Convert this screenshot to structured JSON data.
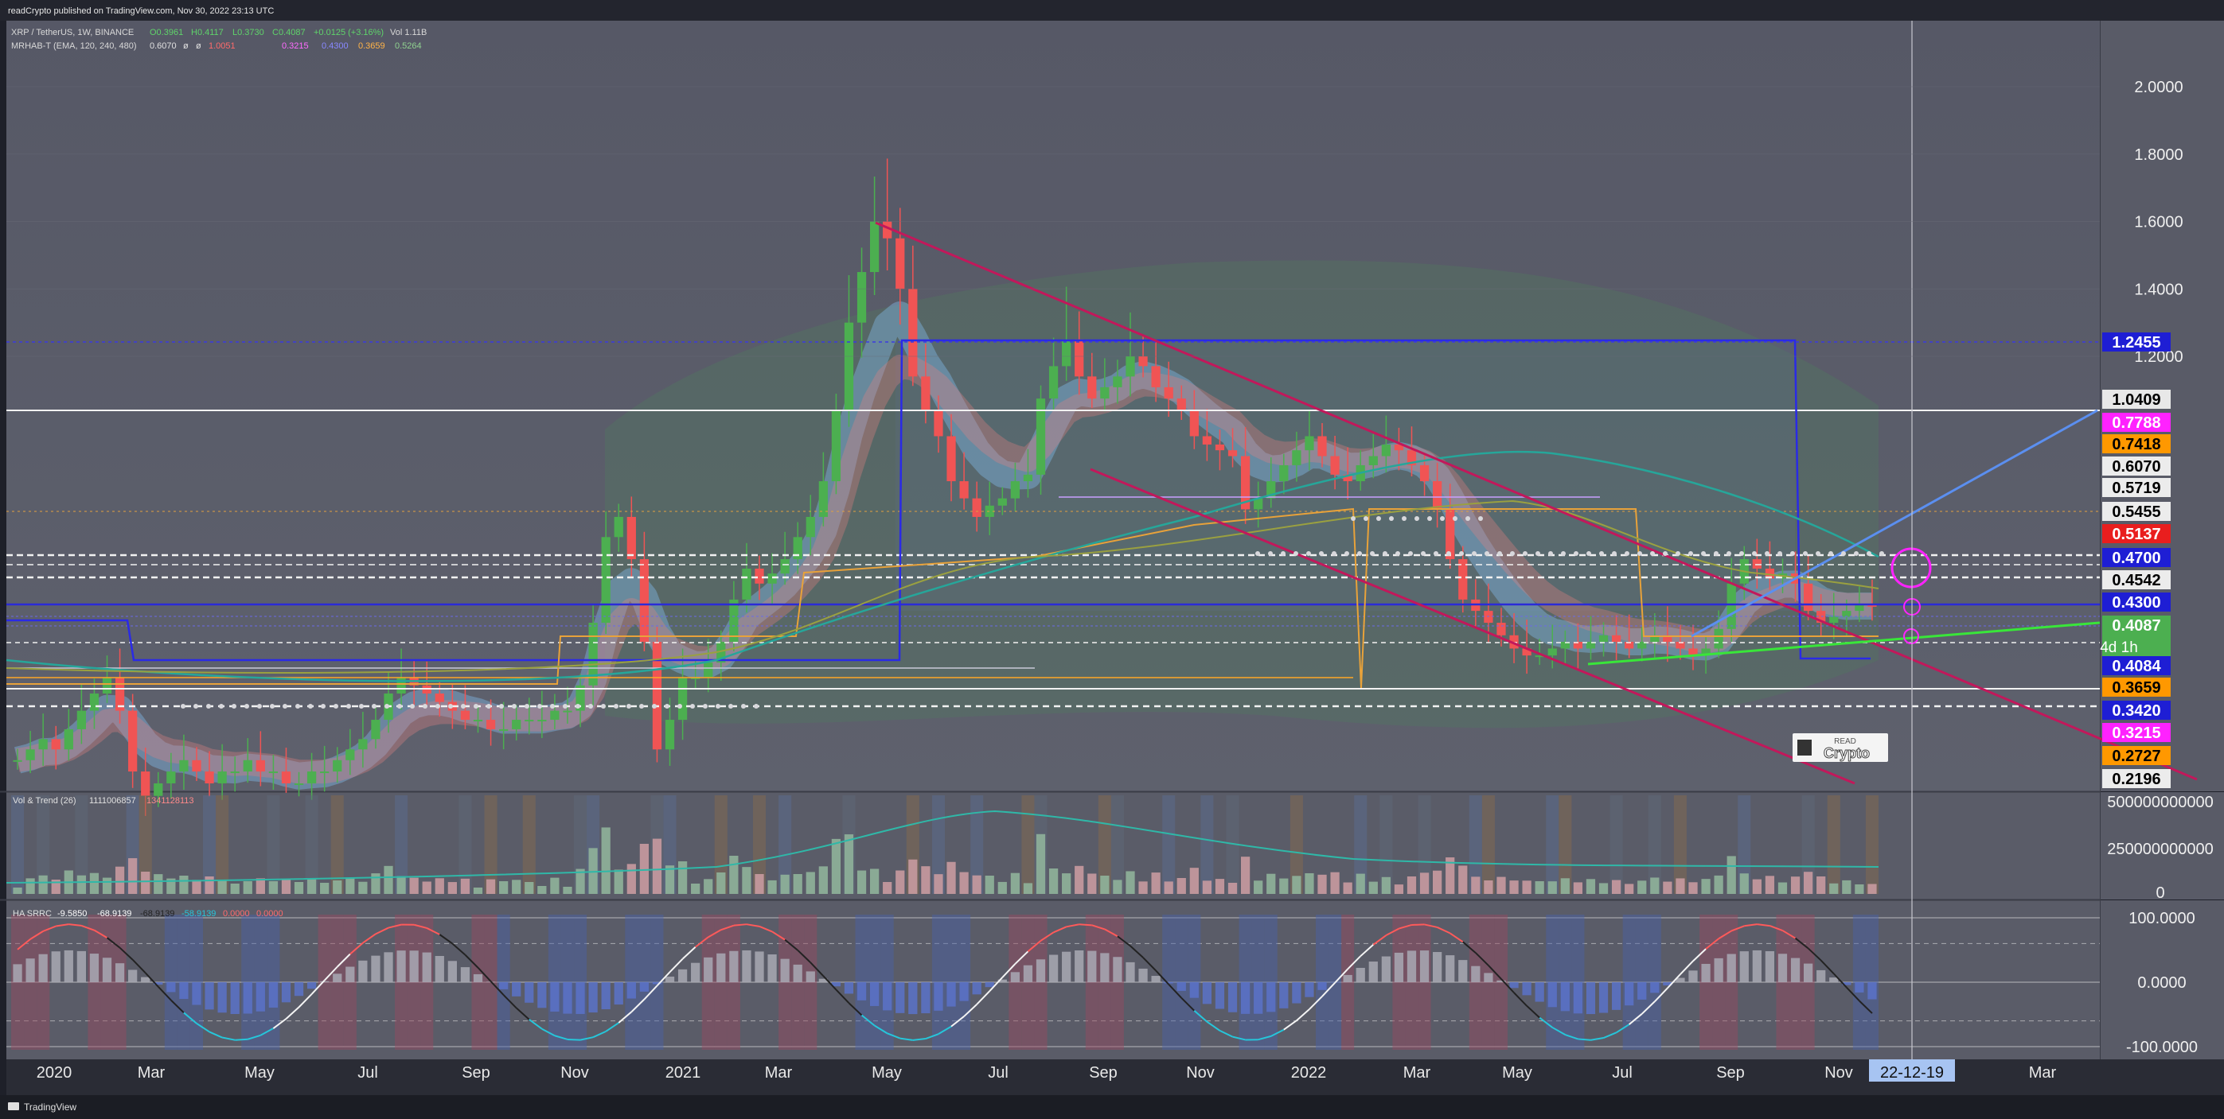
{
  "header": {
    "published": "readCrypto published on TradingView.com, Nov 30, 2022 23:13 UTC",
    "symbol_line": "XRP / TetherUS, 1W, BINANCE",
    "ohlc": {
      "o": "O0.3961",
      "h": "H0.4117",
      "l": "L0.3730",
      "c": "C0.4087",
      "chg": "+0.0125 (+3.16%)",
      "vol": "Vol 1.11B"
    },
    "indicator_line": "MRHAB-T (EMA, 120, 240, 480)",
    "indicator_values": [
      "0.6070",
      "ø",
      "ø",
      "1.0051",
      "0.3215",
      "0.4300",
      "0.3659",
      "0.5264"
    ]
  },
  "vol_panel": {
    "label": "Vol & Trend (26)",
    "value": "1111006857",
    "value2": "1341128113"
  },
  "osc_panel": {
    "label": "HA SRRC",
    "values": [
      "-9.5850",
      "-68.9139",
      "-68.9139",
      "-58.9139",
      "0.0000",
      "0.0000"
    ]
  },
  "footer": {
    "brand": "TradingView"
  },
  "watermark": {
    "top": "READ",
    "bottom": "Crypto"
  },
  "colors": {
    "background": "#5d5f6b",
    "up": "#4caf50",
    "down": "#f05454",
    "channel": "#c2185b",
    "blue_level": "#1f1fd6",
    "support": "#39e639",
    "orange": "#e88b1a",
    "teal": "#26a69a"
  },
  "chart_data": [
    {
      "type": "line",
      "title": "",
      "series_name": "XRP / TetherUS",
      "x_ticks": [
        "2020",
        "Mar",
        "May",
        "Jul",
        "Sep",
        "Nov",
        "2021",
        "Mar",
        "May",
        "Jul",
        "Sep",
        "Nov",
        "2022",
        "Mar",
        "May",
        "Jul",
        "Sep",
        "Nov",
        "22-12-19",
        "Mar"
      ],
      "crosshair_date": "22-12-19",
      "y_axis": {
        "ticks": [
          "2.0000",
          "1.8000",
          "1.6000",
          "1.4000",
          "1.2000"
        ],
        "range": [
          0.19,
          2.05
        ]
      },
      "price_labels": [
        {
          "value": "1.2455",
          "color": "#1e1ed4",
          "text_color": "#ffffff"
        },
        {
          "value": "1.0409",
          "color": "#e8e8e8",
          "text_color": "#000000"
        },
        {
          "value": "0.7788",
          "color": "#ff22ff",
          "text_color": "#ffffff"
        },
        {
          "value": "0.7418",
          "color": "#ff9800",
          "text_color": "#000000"
        },
        {
          "value": "0.6070",
          "color": "#ececec",
          "text_color": "#000000"
        },
        {
          "value": "0.5719",
          "color": "#ececec",
          "text_color": "#000000"
        },
        {
          "value": "0.5455",
          "color": "#ececec",
          "text_color": "#000000"
        },
        {
          "value": "0.5137",
          "color": "#e91e1e",
          "text_color": "#ffffff"
        },
        {
          "value": "0.4700",
          "color": "#1e1ed4",
          "text_color": "#ffffff"
        },
        {
          "value": "0.4542",
          "color": "#ececec",
          "text_color": "#000000"
        },
        {
          "value": "0.4300",
          "color": "#1e1ed4",
          "text_color": "#ffffff"
        },
        {
          "value": "0.4087",
          "color": "#4caf50",
          "text_color": "#ffffff",
          "countdown": "4d 1h"
        },
        {
          "value": "0.4084",
          "color": "#1e1ed4",
          "text_color": "#ffffff"
        },
        {
          "value": "0.3659",
          "color": "#ff9800",
          "text_color": "#000000"
        },
        {
          "value": "0.3420",
          "color": "#1e1ed4",
          "text_color": "#ffffff"
        },
        {
          "value": "0.3215",
          "color": "#ff22ff",
          "text_color": "#ffffff"
        },
        {
          "value": "0.2727",
          "color": "#ff9800",
          "text_color": "#000000"
        },
        {
          "value": "0.2196",
          "color": "#ececec",
          "text_color": "#000000"
        }
      ],
      "close_path": [
        0.21,
        0.22,
        0.23,
        0.22,
        0.24,
        0.26,
        0.28,
        0.3,
        0.26,
        0.2,
        0.18,
        0.19,
        0.2,
        0.21,
        0.2,
        0.19,
        0.2,
        0.2,
        0.21,
        0.2,
        0.2,
        0.19,
        0.19,
        0.2,
        0.2,
        0.21,
        0.22,
        0.23,
        0.25,
        0.28,
        0.3,
        0.29,
        0.28,
        0.27,
        0.26,
        0.25,
        0.25,
        0.24,
        0.24,
        0.25,
        0.25,
        0.25,
        0.26,
        0.26,
        0.29,
        0.38,
        0.55,
        0.6,
        0.5,
        0.35,
        0.22,
        0.25,
        0.3,
        0.3,
        0.32,
        0.35,
        0.42,
        0.48,
        0.45,
        0.47,
        0.5,
        0.55,
        0.6,
        0.7,
        0.95,
        1.3,
        1.45,
        1.6,
        1.55,
        1.4,
        1.1,
        0.95,
        0.85,
        0.7,
        0.65,
        0.6,
        0.63,
        0.65,
        0.7,
        0.72,
        1.0,
        1.15,
        1.25,
        1.1,
        1.0,
        1.05,
        1.1,
        1.2,
        1.15,
        1.05,
        1.0,
        0.95,
        0.85,
        0.82,
        0.8,
        0.78,
        0.62,
        0.65,
        0.7,
        0.75,
        0.8,
        0.85,
        0.78,
        0.72,
        0.7,
        0.75,
        0.78,
        0.82,
        0.8,
        0.75,
        0.7,
        0.62,
        0.5,
        0.42,
        0.4,
        0.38,
        0.36,
        0.34,
        0.33,
        0.33,
        0.34,
        0.35,
        0.34,
        0.35,
        0.36,
        0.35,
        0.34,
        0.35,
        0.36,
        0.35,
        0.34,
        0.33,
        0.34,
        0.37,
        0.45,
        0.5,
        0.48,
        0.46,
        0.47,
        0.45,
        0.4,
        0.38,
        0.39,
        0.4,
        0.41,
        0.4087
      ]
    },
    {
      "type": "bar",
      "title": "Vol & Trend (26)",
      "y_axis": {
        "ticks": [
          "500000000000",
          "250000000000",
          "0"
        ]
      }
    },
    {
      "type": "line",
      "title": "HA SRRC",
      "y_axis": {
        "ticks": [
          "100.0000",
          "0.0000",
          "-100.0000"
        ],
        "range": [
          -105,
          105
        ]
      }
    }
  ]
}
